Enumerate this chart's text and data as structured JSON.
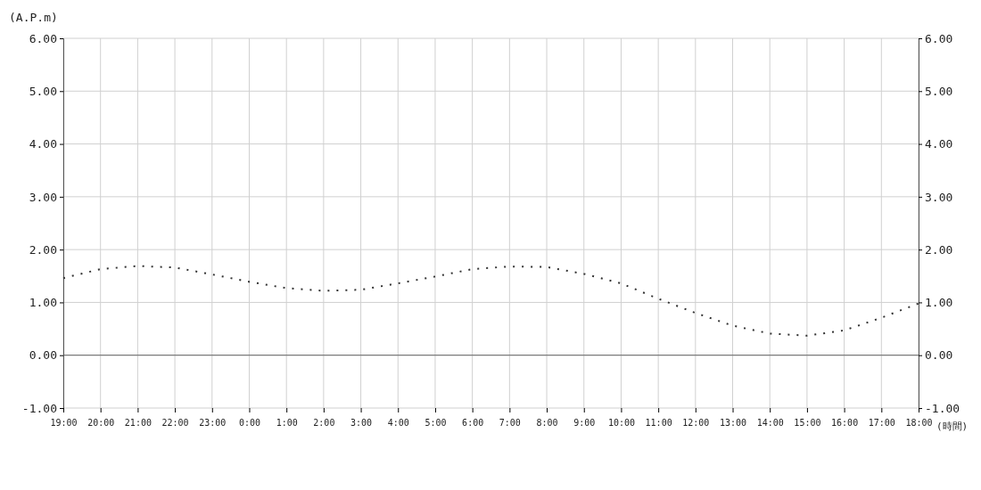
{
  "chart_data": {
    "type": "line",
    "ylabel": "(A.P.m)",
    "xlabel": "(時間)",
    "categories": [
      "19:00",
      "20:00",
      "21:00",
      "22:00",
      "23:00",
      "0:00",
      "1:00",
      "2:00",
      "3:00",
      "4:00",
      "5:00",
      "6:00",
      "7:00",
      "8:00",
      "9:00",
      "10:00",
      "11:00",
      "12:00",
      "13:00",
      "14:00",
      "15:00",
      "16:00",
      "17:00",
      "18:00"
    ],
    "series": [
      {
        "color": "#333333",
        "values": [
          1.46,
          1.63,
          1.69,
          1.66,
          1.53,
          1.39,
          1.27,
          1.22,
          1.24,
          1.36,
          1.49,
          1.63,
          1.68,
          1.67,
          1.54,
          1.36,
          1.07,
          0.8,
          0.56,
          0.41,
          0.37,
          0.47,
          0.71,
          0.98
        ]
      }
    ],
    "ylim": [
      -1,
      6
    ],
    "yticks": [
      {
        "value": -1,
        "label": "-1.00"
      },
      {
        "value": 0,
        "label": "0.00"
      },
      {
        "value": 1,
        "label": "1.00"
      },
      {
        "value": 2,
        "label": "2.00"
      },
      {
        "value": 3,
        "label": "3.00"
      },
      {
        "value": 4,
        "label": "4.00"
      },
      {
        "value": 5,
        "label": "5.00"
      },
      {
        "value": 6,
        "label": "6.00"
      }
    ],
    "y2lim": [
      -1,
      6
    ],
    "y2ticks": [
      {
        "value": -1,
        "label": "-1.00"
      },
      {
        "value": 0,
        "label": "0.00"
      },
      {
        "value": 1,
        "label": "1.00"
      },
      {
        "value": 2,
        "label": "2.00"
      },
      {
        "value": 3,
        "label": "3.00"
      },
      {
        "value": 4,
        "label": "4.00"
      },
      {
        "value": 5,
        "label": "5.00"
      },
      {
        "value": 6,
        "label": "6.00"
      }
    ],
    "ref_lines": [
      {
        "axis": "y",
        "value": 0,
        "color": "#666666"
      }
    ],
    "grid": true,
    "marker": "none",
    "line_style": "dotted"
  }
}
